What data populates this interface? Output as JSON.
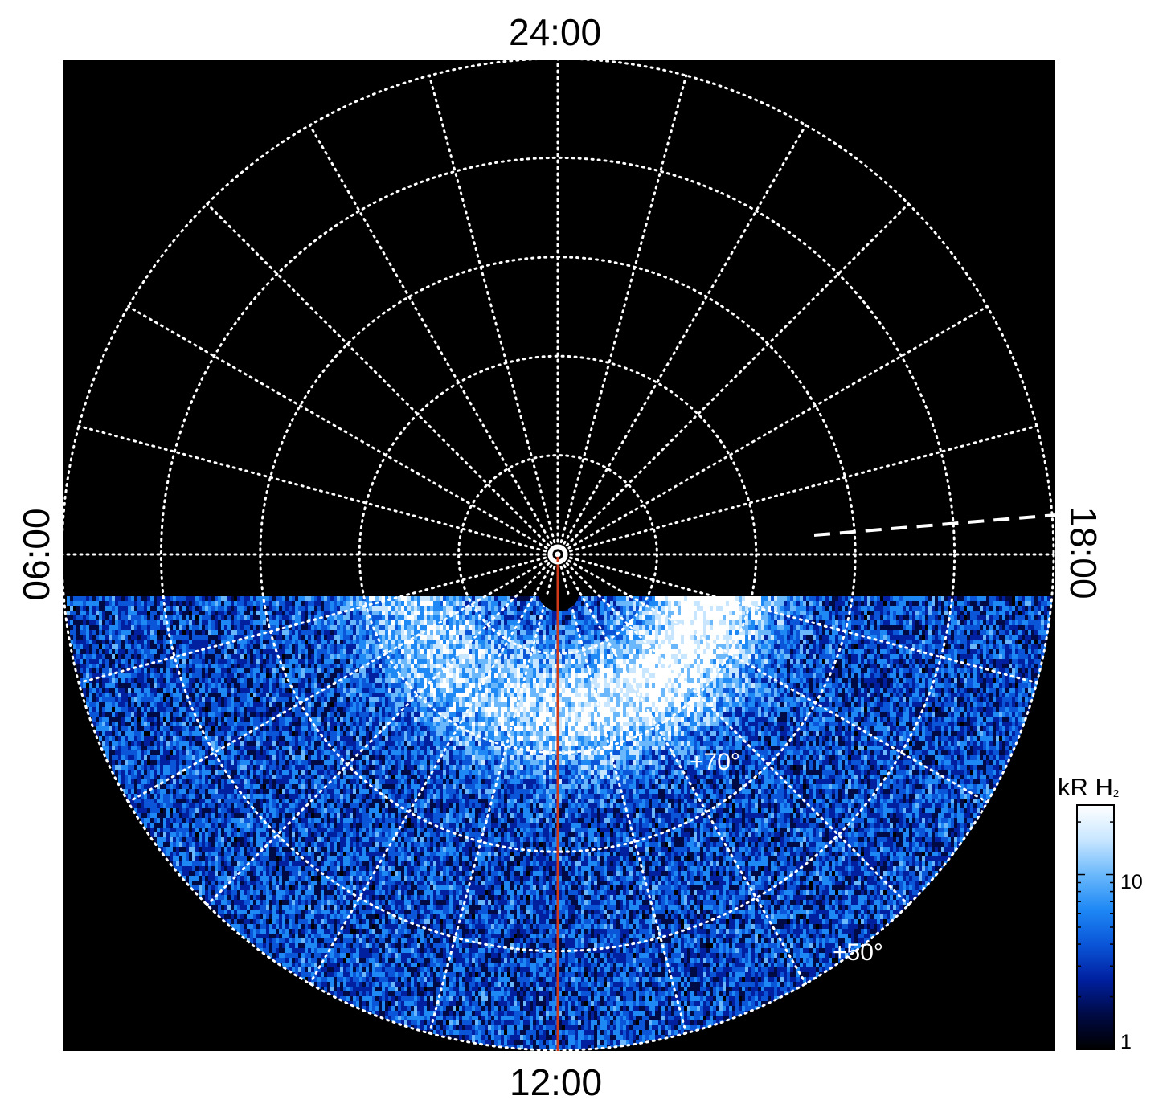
{
  "map": {
    "local_time_labels": {
      "top": "24:00",
      "bottom": "12:00",
      "left": "06:00",
      "right": "18:00"
    },
    "latitude_labels": [
      "+70°",
      "+50°"
    ],
    "grid_latitudes_deg": [
      90,
      80,
      70,
      60,
      50,
      40
    ],
    "meridian_step_hours": 1
  },
  "colorbar": {
    "title": "kR H",
    "title_subscript": "2",
    "scale": "log",
    "range": [
      1,
      25
    ],
    "tick_labels": [
      "10",
      "1"
    ],
    "colors": [
      "#000000",
      "#000a45",
      "#0020a0",
      "#0a55d8",
      "#1e88f5",
      "#6ab8fb",
      "#c8e6ff",
      "#ffffff"
    ]
  },
  "colors": {
    "background": "#000000",
    "grid": "#ffffff",
    "meridian_line": "#d03a18"
  }
}
